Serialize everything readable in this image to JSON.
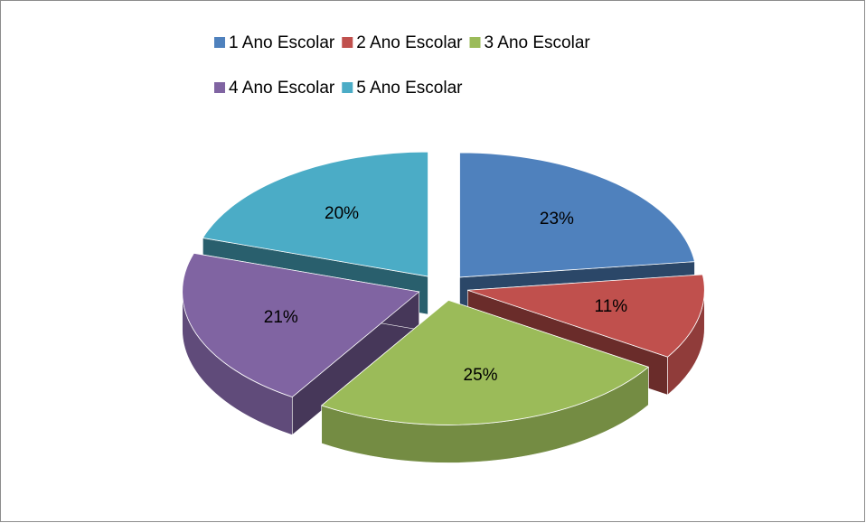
{
  "chart_data": {
    "type": "pie",
    "categories": [
      "1 Ano Escolar",
      "2 Ano Escolar",
      "3 Ano Escolar",
      "4 Ano Escolar",
      "5 Ano Escolar"
    ],
    "values": [
      23,
      11,
      25,
      21,
      20
    ],
    "value_labels": [
      "23%",
      "11%",
      "25%",
      "21%",
      "20%"
    ],
    "colors": [
      "#4f81bd",
      "#c0504d",
      "#9bbb59",
      "#8064a2",
      "#4bacc6"
    ],
    "legend": "top",
    "exploded": true,
    "three_d": true
  }
}
